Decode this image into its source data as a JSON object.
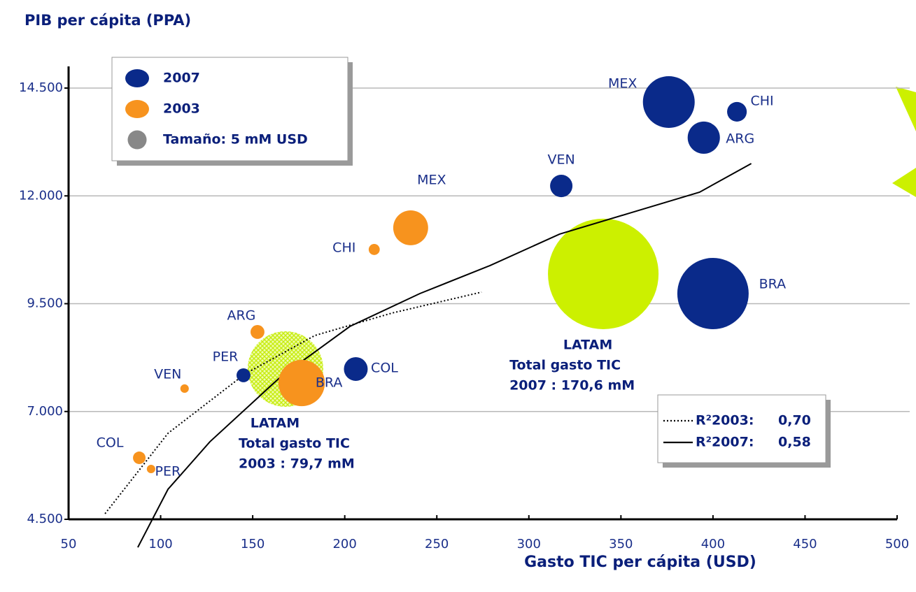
{
  "chart_data": {
    "type": "bubble",
    "title": "PIB per cápita (PPA)",
    "x_label": "Gasto TIC per cápita (USD)",
    "xlim": [
      50,
      500
    ],
    "ylim": [
      4500,
      14500
    ],
    "xticks": [
      50,
      100,
      150,
      200,
      250,
      300,
      350,
      400,
      450,
      500
    ],
    "yticks": [
      {
        "value": 4500,
        "label": "4.500"
      },
      {
        "value": 7000,
        "label": "7.000"
      },
      {
        "value": 9500,
        "label": "9.500"
      },
      {
        "value": 12000,
        "label": "12.000"
      },
      {
        "value": 14500,
        "label": "14.500"
      }
    ],
    "grid": true,
    "size_legend": {
      "label": "Tamaño: 5 mM USD",
      "size": 5,
      "color": "#888888"
    },
    "series": [
      {
        "name": "2007",
        "color": "#0a2a8a",
        "labels": [
          "MEX",
          "CHI",
          "ARG",
          "VEN",
          "BRA",
          "COL",
          "PER"
        ],
        "x": [
          376,
          413,
          395,
          317.6,
          400,
          206,
          145
        ],
        "values": [
          14176,
          13950,
          13350,
          12230,
          9735,
          7985,
          7840
        ],
        "sizes": [
          37.4,
          5.4,
          14.5,
          7,
          71,
          7.9,
          2.7
        ]
      },
      {
        "name": "2003",
        "color": "#f7931e",
        "labels": [
          "MEX",
          "CHI",
          "ARG",
          "VEN",
          "BRA",
          "COL",
          "PER"
        ],
        "x": [
          235.8,
          216,
          152.6,
          113,
          176.6,
          88.4,
          94.8
        ],
        "values": [
          11260,
          10757,
          8844,
          7531,
          7661,
          5926,
          5667
        ],
        "sizes": [
          17,
          1.7,
          2.7,
          1,
          30,
          2.2,
          1
        ]
      }
    ],
    "totals": [
      {
        "lines": [
          "LATAM",
          "Total gasto TIC",
          "2007 : 170,6 mM"
        ],
        "x": 340.4,
        "value": 10190,
        "size": 170.6,
        "color": "#ccf000"
      },
      {
        "lines": [
          "LATAM",
          "Total gasto TIC",
          "2003 : 79,7 mM"
        ],
        "x": 167.8,
        "value": 7985,
        "size": 79.7,
        "color": "#ccf000"
      }
    ],
    "trendlines": [
      {
        "name": "R²2003:",
        "r2": 0.7,
        "r2_label": "0,70",
        "style": "dotted",
        "x": [
          69.8,
          104,
          145.8,
          183.8,
          225.6,
          274.3
        ],
        "values": [
          4630,
          6495,
          7870,
          8763,
          9282,
          9768
        ]
      },
      {
        "name": "R²2007:",
        "r2": 0.58,
        "r2_label": "0,58",
        "style": "solid",
        "x": [
          87.6,
          104,
          126.8,
          164.8,
          202.8,
          240.8,
          278.8,
          316.7,
          354.7,
          392.7,
          420.8
        ],
        "values": [
          3850,
          5197,
          6300,
          7790,
          8973,
          9735,
          10383,
          11113,
          11600,
          12086,
          12750
        ]
      }
    ]
  }
}
